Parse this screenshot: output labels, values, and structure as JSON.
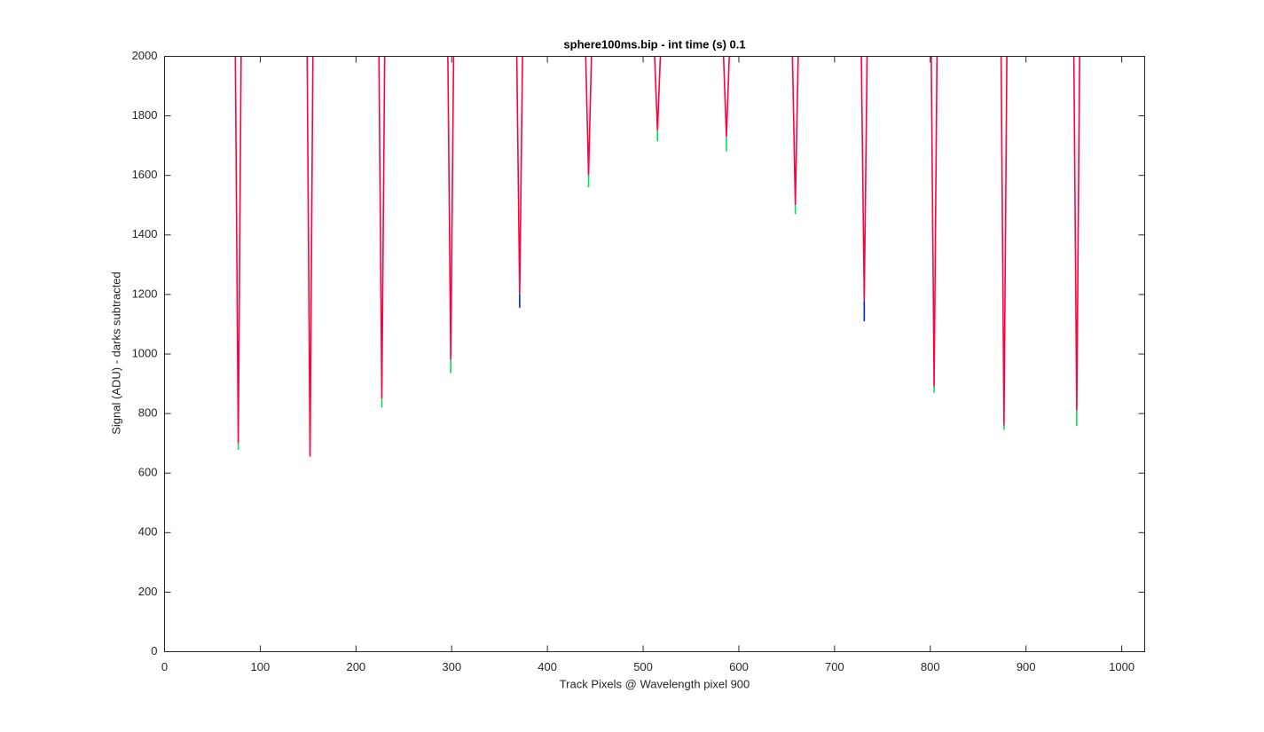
{
  "chart_data": {
    "type": "line",
    "title": "sphere100ms.bip - int time (s) 0.1",
    "xlabel": "Track Pixels @ Wavelength pixel 900",
    "ylabel": "Signal (ADU) - darks subtracted",
    "xlim": [
      0,
      1024
    ],
    "ylim": [
      0,
      2000
    ],
    "xticks": [
      0,
      100,
      200,
      300,
      400,
      500,
      600,
      700,
      800,
      900,
      1000
    ],
    "yticks": [
      0,
      200,
      400,
      600,
      800,
      1000,
      1200,
      1400,
      1600,
      1800,
      2000
    ],
    "series": [
      {
        "color": "#ff0040",
        "x": [
          74,
          77,
          80,
          80,
          149,
          152,
          155,
          155,
          224,
          227,
          230,
          230,
          296,
          299,
          302,
          302,
          368,
          371,
          374,
          374,
          440,
          443,
          446,
          446,
          512,
          515,
          518,
          518,
          584,
          587,
          590,
          590,
          656,
          659,
          662,
          662,
          728,
          731,
          734,
          734,
          801,
          804,
          807,
          807,
          874,
          877,
          880,
          880,
          950,
          953,
          956
        ],
        "values": [
          2000,
          700,
          2000,
          null,
          2000,
          655,
          2000,
          null,
          2000,
          850,
          2000,
          null,
          2000,
          980,
          2000,
          null,
          2000,
          1200,
          2000,
          null,
          2000,
          1600,
          2000,
          null,
          2000,
          1750,
          2000,
          null,
          2000,
          1730,
          2000,
          null,
          2000,
          1500,
          2000,
          null,
          2000,
          1180,
          2000,
          null,
          2000,
          890,
          2000,
          null,
          2000,
          760,
          2000,
          null,
          2000,
          810,
          2000
        ]
      },
      {
        "color": "#00e060",
        "x": [
          77,
          77,
          77,
          227,
          227,
          227,
          299,
          299,
          299,
          443,
          443,
          443,
          515,
          515,
          515,
          587,
          587,
          587,
          659,
          659,
          659,
          804,
          804,
          804,
          877,
          877,
          877,
          953,
          953
        ],
        "values": [
          700,
          678,
          null,
          850,
          820,
          null,
          980,
          935,
          null,
          1600,
          1560,
          null,
          1750,
          1715,
          null,
          1730,
          1680,
          null,
          1500,
          1470,
          null,
          890,
          870,
          null,
          760,
          745,
          null,
          810,
          758
        ]
      },
      {
        "color": "#0020ff",
        "x": [
          371,
          371,
          371,
          731,
          731
        ],
        "values": [
          1200,
          1155,
          null,
          1180,
          1110
        ]
      }
    ]
  }
}
